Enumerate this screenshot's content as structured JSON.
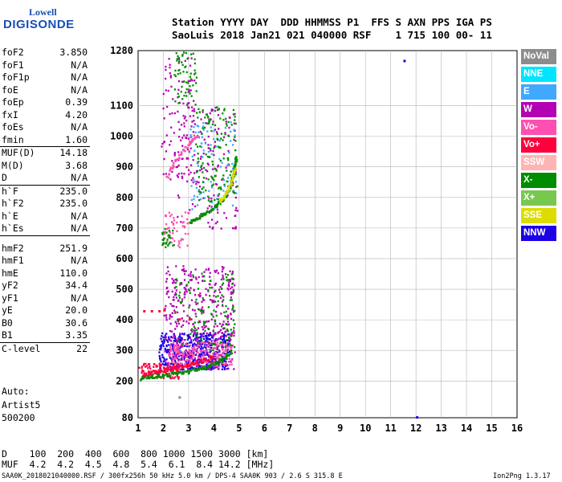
{
  "logo": {
    "line1": "Lowell",
    "line2": "DIGISONDE"
  },
  "header": {
    "row1": "Station YYYY DAY  DDD HHMMSS P1  FFS S AXN PPS IGA PS",
    "row2": "SaoLuis 2018 Jan21 021 040000 RSF    1 715 100 00- 11"
  },
  "parameters": [
    {
      "name": "foF2",
      "value": "3.850"
    },
    {
      "name": "foF1",
      "value": "N/A"
    },
    {
      "name": "foF1p",
      "value": "N/A"
    },
    {
      "name": "foE",
      "value": "N/A"
    },
    {
      "name": "foEp",
      "value": "0.39"
    },
    {
      "name": "fxI",
      "value": "4.20"
    },
    {
      "name": "foEs",
      "value": "N/A"
    },
    {
      "name": "fmin",
      "value": "1.60"
    },
    {
      "name": "MUF(D)",
      "value": "14.18"
    },
    {
      "name": "M(D)",
      "value": "3.68"
    },
    {
      "name": "D",
      "value": "N/A"
    },
    {
      "name": "h`F",
      "value": "235.0"
    },
    {
      "name": "h`F2",
      "value": "235.0"
    },
    {
      "name": "h`E",
      "value": "N/A"
    },
    {
      "name": "h`Es",
      "value": "N/A"
    },
    {
      "name": "hmF2",
      "value": "251.9"
    },
    {
      "name": "hmF1",
      "value": "N/A"
    },
    {
      "name": "hmE",
      "value": "110.0"
    },
    {
      "name": "yF2",
      "value": "34.4"
    },
    {
      "name": "yF1",
      "value": "N/A"
    },
    {
      "name": "yE",
      "value": "20.0"
    },
    {
      "name": "B0",
      "value": "30.6"
    },
    {
      "name": "B1",
      "value": "3.35"
    },
    {
      "name": "C-level",
      "value": "22"
    }
  ],
  "auto": [
    "Auto:",
    "Artist5",
    "500200"
  ],
  "legend": [
    {
      "label": "NoVal",
      "color": "#8c8c8c"
    },
    {
      "label": "NNE",
      "color": "#00e5ff"
    },
    {
      "label": "E",
      "color": "#40a8ff"
    },
    {
      "label": "W",
      "color": "#b400b4"
    },
    {
      "label": "Vo-",
      "color": "#ff4fb0"
    },
    {
      "label": "Vo+",
      "color": "#ff003c"
    },
    {
      "label": "SSW",
      "color": "#ffb4b4"
    },
    {
      "label": "X-",
      "color": "#008c00"
    },
    {
      "label": "X+",
      "color": "#78c850"
    },
    {
      "label": "SSE",
      "color": "#dcdc00"
    },
    {
      "label": "NNW",
      "color": "#1c00e6"
    }
  ],
  "bottom": {
    "row1": "D    100  200  400  600  800 1000 1500 3000 [km]",
    "row2": "MUF  4.2  4.2  4.5  4.8  5.4  6.1  8.4 14.2 [MHz]"
  },
  "footer": {
    "left": "SAA0K_2018021040000.RSF / 300fx256h 50 kHz 5.0 km / DPS-4 SAA0K 903 / 2.6 S 315.8 E",
    "right": "Ion2Png 1.3.17"
  },
  "chart_data": {
    "type": "scatter",
    "xlim": [
      1,
      16
    ],
    "ylim": [
      80,
      1280
    ],
    "x_ticks": [
      1,
      2,
      3,
      4,
      5,
      6,
      7,
      8,
      9,
      10,
      11,
      12,
      13,
      14,
      15,
      16
    ],
    "y_ticks": [
      80,
      200,
      300,
      400,
      500,
      600,
      700,
      800,
      900,
      1000,
      1100,
      1280
    ],
    "grid": true,
    "legend_position": "right",
    "traces": [
      {
        "color": "#008c00",
        "points": [
          [
            1.1,
            212
          ],
          [
            1.5,
            218
          ],
          [
            2.0,
            222
          ],
          [
            2.5,
            228
          ],
          [
            3.0,
            234
          ],
          [
            3.5,
            244
          ],
          [
            4.0,
            258
          ],
          [
            4.4,
            278
          ],
          [
            4.7,
            305
          ]
        ]
      },
      {
        "color": "#008c00",
        "points": [
          [
            3.0,
            720
          ],
          [
            3.4,
            740
          ],
          [
            3.8,
            760
          ],
          [
            4.2,
            785
          ],
          [
            4.5,
            820
          ],
          [
            4.7,
            860
          ],
          [
            4.8,
            900
          ],
          [
            4.85,
            940
          ]
        ]
      },
      {
        "color": "#ff003c",
        "points": [
          [
            1.2,
            225
          ],
          [
            1.6,
            232
          ],
          [
            2.0,
            238
          ],
          [
            2.5,
            246
          ],
          [
            3.0,
            255
          ],
          [
            3.5,
            268
          ],
          [
            4.0,
            285
          ]
        ]
      },
      {
        "color": "#dcdc00",
        "points": [
          [
            4.2,
            790
          ],
          [
            4.5,
            820
          ],
          [
            4.7,
            860
          ],
          [
            4.8,
            900
          ]
        ]
      },
      {
        "color": "#ff4fb0",
        "points": [
          [
            2.1,
            870
          ],
          [
            2.5,
            930
          ],
          [
            3.0,
            980
          ],
          [
            3.3,
            1010
          ]
        ]
      }
    ],
    "scatter_regions": [
      {
        "color": "#1c00e6",
        "x": [
          1.8,
          4.6
        ],
        "y": [
          240,
          360
        ],
        "n": 500
      },
      {
        "color": "#b400b4",
        "x": [
          2.0,
          4.8
        ],
        "y": [
          240,
          580
        ],
        "n": 420
      },
      {
        "color": "#ff4fb0",
        "x": [
          2.2,
          4.7
        ],
        "y": [
          250,
          330
        ],
        "n": 200
      },
      {
        "color": "#ff003c",
        "x": [
          1.0,
          2.6
        ],
        "y": [
          210,
          260
        ],
        "n": 90
      },
      {
        "color": "#008c00",
        "x": [
          2.4,
          4.8
        ],
        "y": [
          300,
          560
        ],
        "n": 120
      },
      {
        "color": "#b400b4",
        "x": [
          2.5,
          4.9
        ],
        "y": [
          700,
          1100
        ],
        "n": 160
      },
      {
        "color": "#40a8ff",
        "x": [
          3.0,
          4.9
        ],
        "y": [
          760,
          1050
        ],
        "n": 90
      },
      {
        "color": "#008c00",
        "x": [
          3.2,
          4.9
        ],
        "y": [
          780,
          1100
        ],
        "n": 130
      },
      {
        "color": "#b400b4",
        "x": [
          1.9,
          3.2
        ],
        "y": [
          860,
          1260
        ],
        "n": 90
      },
      {
        "color": "#008c00",
        "x": [
          2.4,
          3.3
        ],
        "y": [
          1100,
          1280
        ],
        "n": 60
      },
      {
        "color": "#ff4fb0",
        "x": [
          2.0,
          3.0
        ],
        "y": [
          640,
          760
        ],
        "n": 50
      },
      {
        "color": "#008c00",
        "x": [
          1.9,
          2.4
        ],
        "y": [
          640,
          700
        ],
        "n": 30
      }
    ],
    "marks": [
      {
        "color": "#ff003c",
        "points": [
          [
            1.2,
            432
          ],
          [
            1.5,
            432
          ],
          [
            1.8,
            432
          ],
          [
            2.0,
            435
          ],
          [
            2.6,
            405
          ],
          [
            3.0,
            405
          ]
        ]
      },
      {
        "color": "#1c00e6",
        "points": [
          [
            11.5,
            1250
          ],
          [
            12.0,
            85
          ]
        ]
      },
      {
        "color": "#8c8c8c",
        "points": [
          [
            2.6,
            150
          ]
        ]
      }
    ]
  }
}
